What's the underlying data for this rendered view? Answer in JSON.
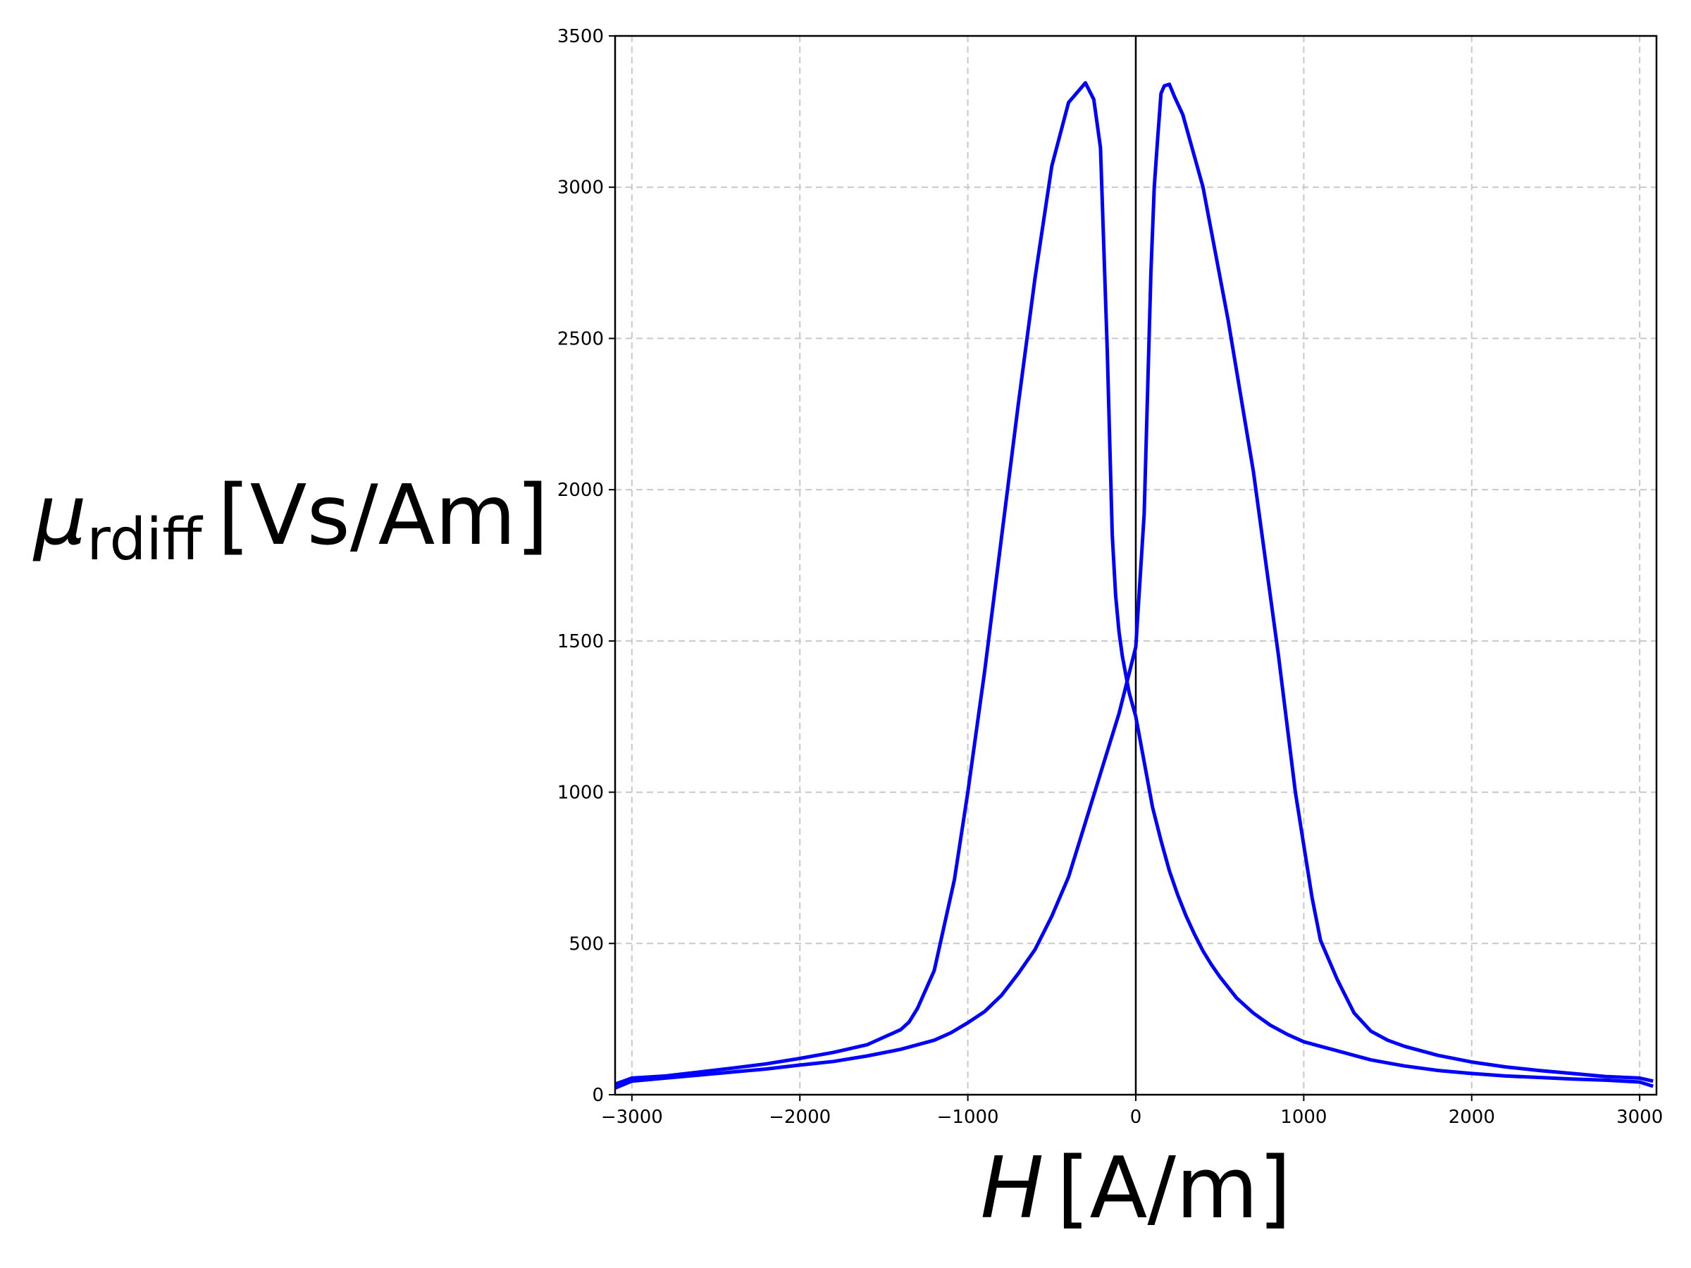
{
  "chart_data": {
    "type": "line",
    "title": "",
    "xlabel": {
      "symbol": "H",
      "unit": "[A/m]"
    },
    "ylabel": {
      "symbol": "μ",
      "subscript": "rdiff",
      "unit": "[Vs/Am]"
    },
    "xlim": [
      -3100,
      3100
    ],
    "ylim": [
      0,
      3500
    ],
    "xticks": [
      -3000,
      -2000,
      -1000,
      0,
      1000,
      2000,
      3000
    ],
    "xtick_labels": [
      "−3000",
      "−2000",
      "−1000",
      "0",
      "1000",
      "2000",
      "3000"
    ],
    "yticks": [
      0,
      500,
      1000,
      1500,
      2000,
      2500,
      3000,
      3500
    ],
    "ytick_labels": [
      "0",
      "500",
      "1000",
      "1500",
      "2000",
      "2500",
      "3000",
      "3500"
    ],
    "grid": true,
    "zero_vertical_line": true,
    "series_color": "#0000ff",
    "series": [
      {
        "x": [
          -3100,
          -3000,
          -2800,
          -2600,
          -2400,
          -2200,
          -2000,
          -1800,
          -1600,
          -1500,
          -1400,
          -1350,
          -1300,
          -1200,
          -1080,
          -1000,
          -900,
          -800,
          -700,
          -600,
          -500,
          -400,
          -300,
          -250,
          -210,
          -170,
          -140,
          -120,
          -100,
          -80,
          -60,
          -40,
          -20,
          0,
          50,
          100,
          150,
          200,
          250,
          300,
          350,
          400,
          450,
          500,
          600,
          700,
          800,
          900,
          1000,
          1100,
          1200,
          1300,
          1400,
          1500,
          1600,
          1800,
          2000,
          2200,
          2400,
          2600,
          2800,
          3000,
          3080
        ],
        "y": [
          35,
          55,
          62,
          75,
          88,
          102,
          120,
          140,
          165,
          190,
          215,
          240,
          285,
          410,
          710,
          1000,
          1400,
          1840,
          2280,
          2700,
          3070,
          3280,
          3345,
          3290,
          3130,
          2460,
          1850,
          1650,
          1530,
          1450,
          1390,
          1330,
          1290,
          1250,
          1100,
          950,
          840,
          740,
          660,
          590,
          530,
          475,
          430,
          390,
          320,
          270,
          230,
          200,
          175,
          160,
          145,
          130,
          115,
          105,
          95,
          80,
          70,
          62,
          57,
          52,
          48,
          42,
          28
        ]
      },
      {
        "x": [
          -3100,
          -3000,
          -2800,
          -2600,
          -2400,
          -2200,
          -2000,
          -1800,
          -1600,
          -1400,
          -1200,
          -1100,
          -1000,
          -900,
          -800,
          -700,
          -600,
          -500,
          -400,
          -300,
          -200,
          -100,
          0,
          50,
          90,
          110,
          130,
          150,
          170,
          200,
          230,
          280,
          400,
          550,
          700,
          850,
          950,
          1050,
          1100,
          1200,
          1300,
          1350,
          1400,
          1500,
          1600,
          1800,
          2000,
          2200,
          2400,
          2600,
          2800,
          3000,
          3080
        ],
        "y": [
          22,
          45,
          55,
          65,
          75,
          85,
          98,
          110,
          128,
          150,
          180,
          205,
          238,
          275,
          328,
          400,
          480,
          590,
          720,
          900,
          1080,
          1260,
          1480,
          1920,
          2720,
          3000,
          3160,
          3310,
          3335,
          3340,
          3300,
          3240,
          3000,
          2560,
          2060,
          1450,
          1000,
          650,
          510,
          380,
          270,
          240,
          210,
          180,
          160,
          130,
          108,
          92,
          80,
          70,
          60,
          55,
          45
        ]
      }
    ]
  }
}
